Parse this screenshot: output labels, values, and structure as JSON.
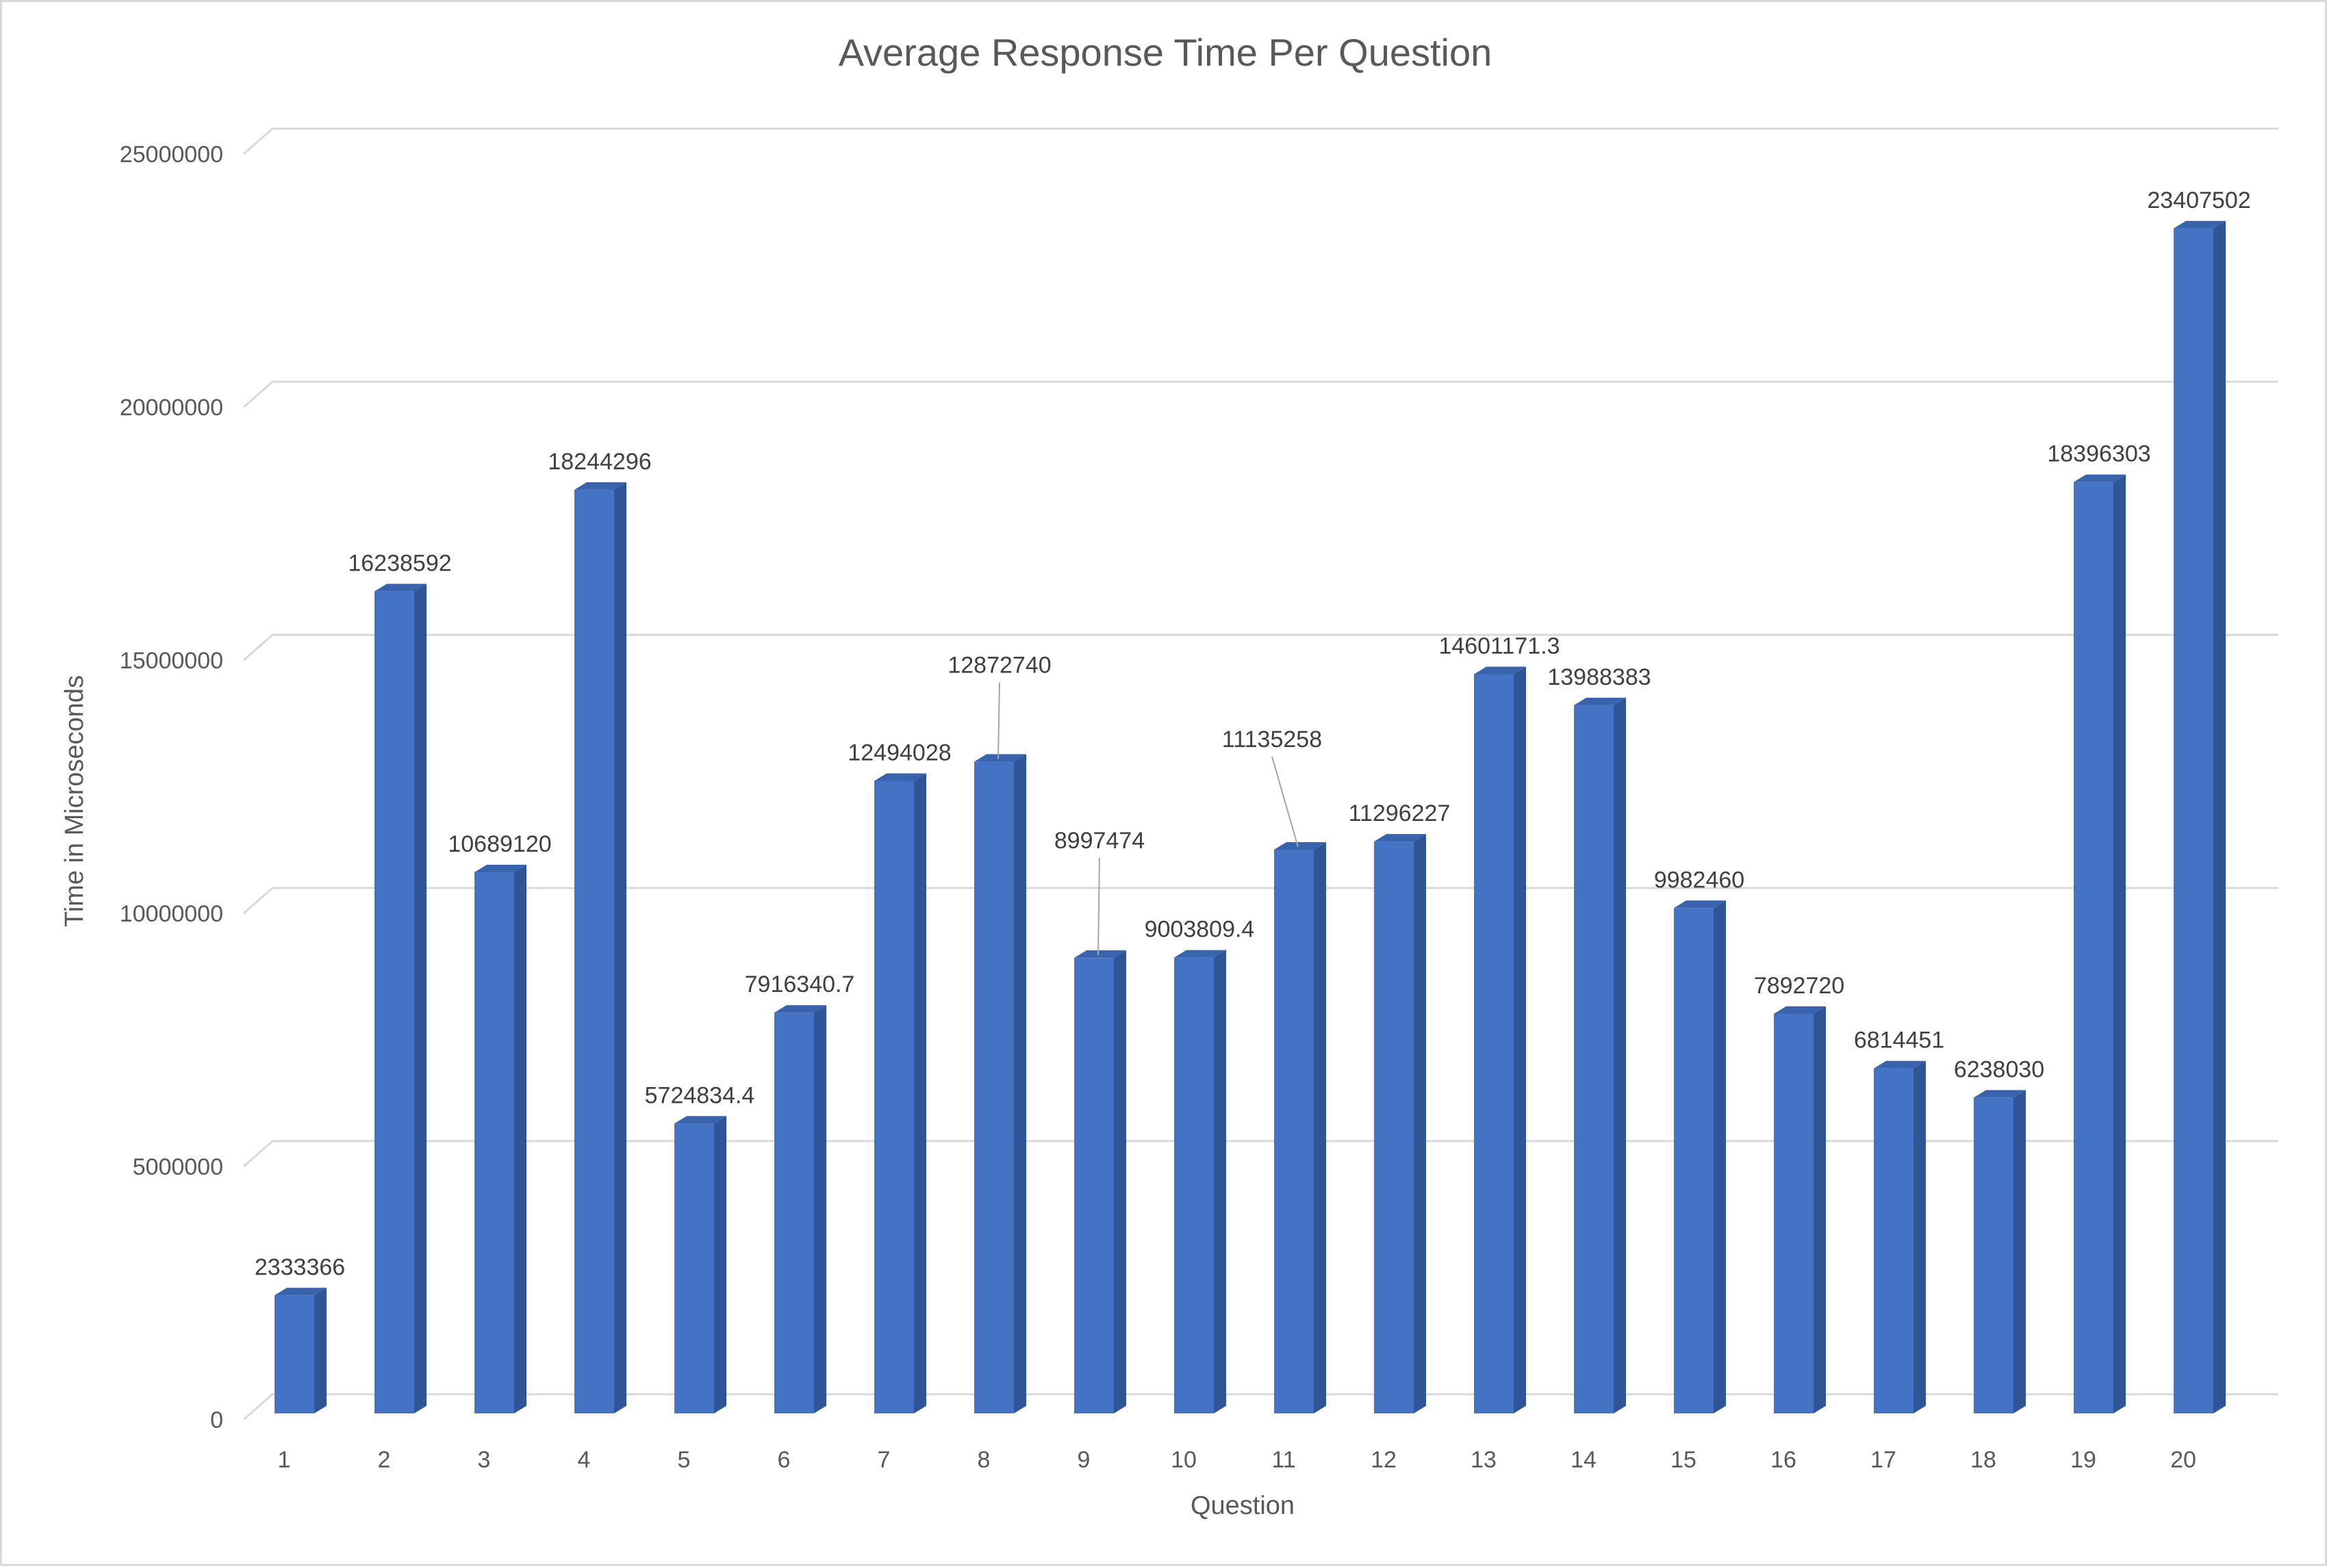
{
  "chart_data": {
    "type": "bar",
    "title": "Average Response Time Per Question",
    "xlabel": "Question",
    "ylabel": "Time in Microseconds",
    "ylim": [
      0,
      25000000
    ],
    "yticks": [
      "0",
      "5000000",
      "10000000",
      "15000000",
      "20000000",
      "25000000"
    ],
    "categories": [
      "1",
      "2",
      "3",
      "4",
      "5",
      "6",
      "7",
      "8",
      "9",
      "10",
      "11",
      "12",
      "13",
      "14",
      "15",
      "16",
      "17",
      "18",
      "19",
      "20"
    ],
    "values": [
      2333366,
      16238592,
      10689120,
      18244296,
      5724834.4,
      7916340.7,
      12494028,
      12872740,
      8997474,
      9003809.4,
      11135258,
      11296227,
      14601171.3,
      13988383,
      9982460,
      7892720,
      6814451,
      6238030,
      18396303,
      23407502
    ],
    "data_labels": [
      "2333366",
      "16238592",
      "10689120",
      "18244296",
      "5724834.4",
      "7916340.7",
      "12494028",
      "12872740",
      "8997474",
      "9003809.4",
      "11135258",
      "11296227",
      "14601171.3",
      "13988383",
      "9982460",
      "7892720",
      "6814451",
      "6238030",
      "18396303",
      "23407502"
    ],
    "grid": true,
    "legend": "none",
    "bar_style": "3d-column",
    "colors": {
      "bar_front": "#4472c4",
      "bar_side": "#2f5597",
      "bar_top": "#3a63ad",
      "grid": "#d9d9d9",
      "text": "#595959"
    }
  }
}
